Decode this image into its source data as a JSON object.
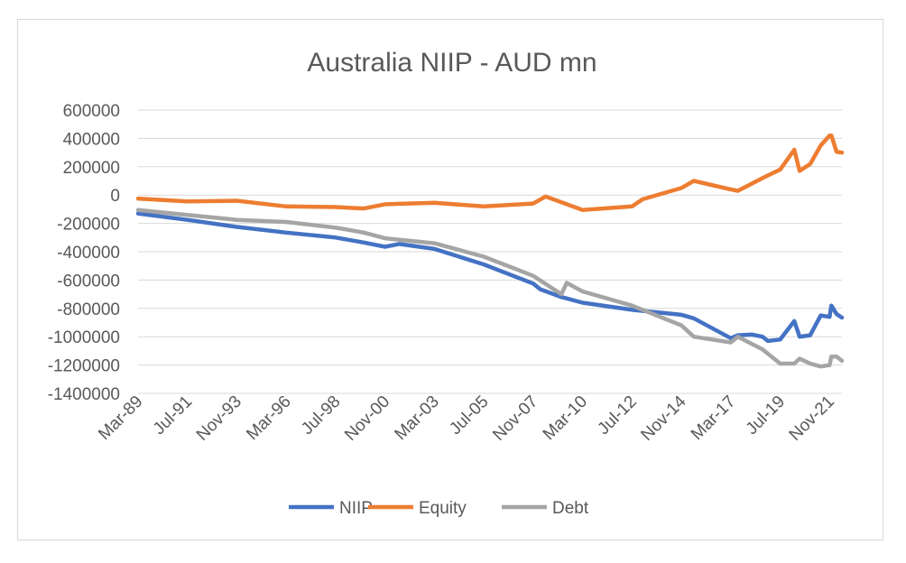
{
  "chart_data": {
    "type": "line",
    "title": "Australia NIIP - AUD mn",
    "xlabel": "",
    "ylabel": "",
    "ylim": [
      -1400000,
      600000
    ],
    "yticks": [
      600000,
      400000,
      200000,
      0,
      -200000,
      -400000,
      -600000,
      -800000,
      -1000000,
      -1200000,
      -1400000
    ],
    "ytick_labels": [
      "600000",
      "400000",
      "200000",
      "0",
      "-200000",
      "-400000",
      "-600000",
      "-800000",
      "-1000000",
      "-1200000",
      "-1400000"
    ],
    "x_tick_labels": [
      "Mar-89",
      "Jul-91",
      "Nov-93",
      "Mar-96",
      "Jul-98",
      "Nov-00",
      "Mar-03",
      "Jul-05",
      "Nov-07",
      "Mar-10",
      "Jul-12",
      "Nov-14",
      "Mar-17",
      "Jul-19",
      "Nov-21"
    ],
    "x_range": [
      "Mar-89",
      "Jun-22"
    ],
    "grid": true,
    "legend_position": "bottom",
    "series": [
      {
        "name": "NIIP",
        "color": "#4472c4",
        "points": [
          [
            "Mar-89",
            -130000
          ],
          [
            "Jul-91",
            -175000
          ],
          [
            "Nov-93",
            -225000
          ],
          [
            "Mar-96",
            -265000
          ],
          [
            "Jul-98",
            -300000
          ],
          [
            "Nov-99",
            -335000
          ],
          [
            "Nov-00",
            -365000
          ],
          [
            "Jul-01",
            -345000
          ],
          [
            "Mar-03",
            -380000
          ],
          [
            "Jul-05",
            -490000
          ],
          [
            "Nov-07",
            -625000
          ],
          [
            "Mar-08",
            -665000
          ],
          [
            "Mar-09",
            -720000
          ],
          [
            "Mar-10",
            -760000
          ],
          [
            "Jul-12",
            -810000
          ],
          [
            "Nov-14",
            -845000
          ],
          [
            "Jun-15",
            -870000
          ],
          [
            "Mar-17",
            -1010000
          ],
          [
            "Jul-17",
            -990000
          ],
          [
            "Mar-18",
            -985000
          ],
          [
            "Sep-18",
            -1000000
          ],
          [
            "Dec-18",
            -1030000
          ],
          [
            "Jul-19",
            -1020000
          ],
          [
            "Mar-20",
            -890000
          ],
          [
            "Jun-20",
            -1000000
          ],
          [
            "Dec-20",
            -990000
          ],
          [
            "Jun-21",
            -850000
          ],
          [
            "Nov-21",
            -860000
          ],
          [
            "Dec-21",
            -780000
          ],
          [
            "Mar-22",
            -840000
          ],
          [
            "Jun-22",
            -865000
          ]
        ]
      },
      {
        "name": "Equity",
        "color": "#ed7d31",
        "points": [
          [
            "Mar-89",
            -25000
          ],
          [
            "Jul-91",
            -45000
          ],
          [
            "Nov-93",
            -40000
          ],
          [
            "Mar-96",
            -80000
          ],
          [
            "Jul-98",
            -85000
          ],
          [
            "Nov-99",
            -95000
          ],
          [
            "Nov-00",
            -65000
          ],
          [
            "Mar-03",
            -55000
          ],
          [
            "Jul-05",
            -80000
          ],
          [
            "Nov-07",
            -60000
          ],
          [
            "Jun-08",
            -10000
          ],
          [
            "Mar-10",
            -105000
          ],
          [
            "Jul-12",
            -80000
          ],
          [
            "Jan-13",
            -30000
          ],
          [
            "Nov-14",
            50000
          ],
          [
            "Jun-15",
            100000
          ],
          [
            "Mar-17",
            40000
          ],
          [
            "Jul-17",
            30000
          ],
          [
            "Sep-18",
            120000
          ],
          [
            "Jul-19",
            180000
          ],
          [
            "Mar-20",
            320000
          ],
          [
            "Jun-20",
            170000
          ],
          [
            "Dec-20",
            220000
          ],
          [
            "Jun-21",
            350000
          ],
          [
            "Nov-21",
            420000
          ],
          [
            "Dec-21",
            420000
          ],
          [
            "Mar-22",
            305000
          ],
          [
            "Jun-22",
            300000
          ]
        ]
      },
      {
        "name": "Debt",
        "color": "#a5a5a5",
        "points": [
          [
            "Mar-89",
            -105000
          ],
          [
            "Jul-91",
            -140000
          ],
          [
            "Nov-93",
            -175000
          ],
          [
            "Mar-96",
            -190000
          ],
          [
            "Jul-98",
            -230000
          ],
          [
            "Nov-99",
            -265000
          ],
          [
            "Nov-00",
            -305000
          ],
          [
            "Mar-03",
            -340000
          ],
          [
            "Jul-05",
            -435000
          ],
          [
            "Nov-07",
            -570000
          ],
          [
            "Mar-09",
            -700000
          ],
          [
            "Jun-09",
            -620000
          ],
          [
            "Mar-10",
            -680000
          ],
          [
            "Jul-12",
            -780000
          ],
          [
            "Nov-14",
            -920000
          ],
          [
            "Jun-15",
            -1000000
          ],
          [
            "Mar-17",
            -1040000
          ],
          [
            "Jul-17",
            -1000000
          ],
          [
            "Sep-18",
            -1090000
          ],
          [
            "Jul-19",
            -1190000
          ],
          [
            "Mar-20",
            -1190000
          ],
          [
            "Jun-20",
            -1155000
          ],
          [
            "Dec-20",
            -1190000
          ],
          [
            "Jun-21",
            -1210000
          ],
          [
            "Nov-21",
            -1200000
          ],
          [
            "Dec-21",
            -1140000
          ],
          [
            "Mar-22",
            -1140000
          ],
          [
            "Jun-22",
            -1170000
          ]
        ]
      }
    ]
  }
}
